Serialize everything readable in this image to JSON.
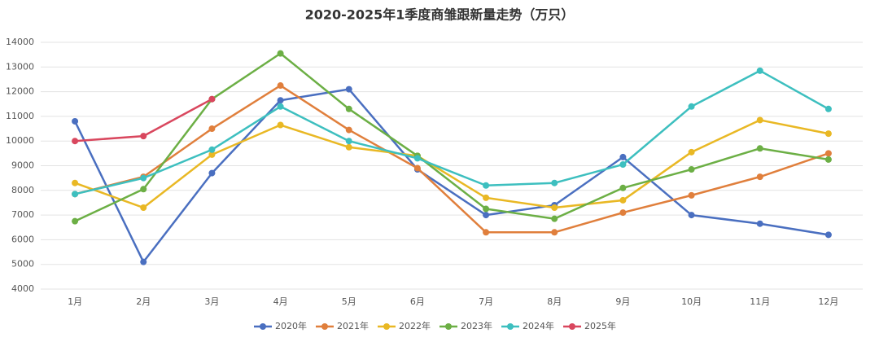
{
  "chart_data": {
    "type": "line",
    "title": "2020-2025年1季度商雏跟新量走势（万只）",
    "categories": [
      "1月",
      "2月",
      "3月",
      "4月",
      "5月",
      "6月",
      "7月",
      "8月",
      "9月",
      "10月",
      "11月",
      "12月"
    ],
    "series": [
      {
        "name": "2020年",
        "color": "#4a6fc0",
        "values": [
          10800,
          5100,
          8700,
          11650,
          12100,
          8850,
          7000,
          7400,
          9350,
          7000,
          6650,
          6200
        ]
      },
      {
        "name": "2021年",
        "color": "#e07f3c",
        "values": [
          7850,
          8550,
          10500,
          12250,
          10450,
          8900,
          6300,
          6300,
          7100,
          7800,
          8550,
          9500
        ]
      },
      {
        "name": "2022年",
        "color": "#e9b824",
        "values": [
          8300,
          7300,
          9450,
          10650,
          9750,
          9400,
          7700,
          7300,
          7600,
          9550,
          10850,
          10300
        ]
      },
      {
        "name": "2023年",
        "color": "#6caf45",
        "values": [
          6750,
          8050,
          11700,
          13550,
          11300,
          9400,
          7250,
          6850,
          8100,
          8850,
          9700,
          9250
        ]
      },
      {
        "name": "2024年",
        "color": "#3dbfbf",
        "values": [
          7850,
          8500,
          9650,
          11400,
          10000,
          9300,
          8200,
          8300,
          9050,
          11400,
          12850,
          11300
        ]
      },
      {
        "name": "2025年",
        "color": "#d9475e",
        "values": [
          10000,
          10200,
          11700,
          null,
          null,
          null,
          null,
          null,
          null,
          null,
          null,
          null
        ]
      }
    ],
    "ylim": [
      4000,
      14000
    ],
    "yticks": [
      4000,
      5000,
      6000,
      7000,
      8000,
      9000,
      10000,
      11000,
      12000,
      13000,
      14000
    ],
    "grid": true,
    "legend": "bottom"
  }
}
